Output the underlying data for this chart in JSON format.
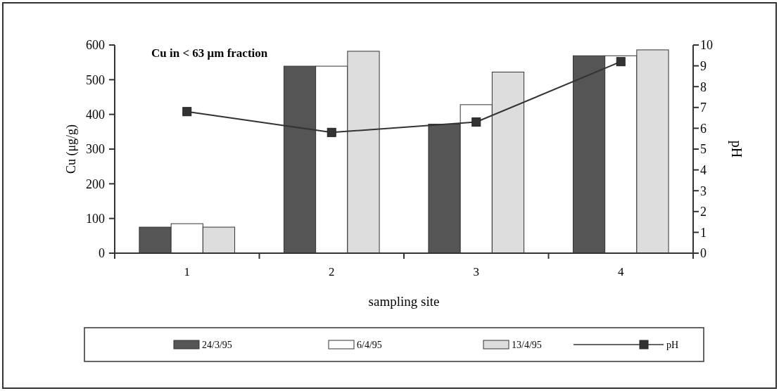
{
  "chart_data": {
    "type": "bar",
    "title": "Cu in < 63 μm fraction",
    "xlabel": "sampling site",
    "ylabel": "Cu (μg/g)",
    "y2label": "pH",
    "categories": [
      "1",
      "2",
      "3",
      "4"
    ],
    "series": [
      {
        "name": "24/3/95",
        "color": "#555555",
        "values": [
          75,
          539,
          372,
          569
        ]
      },
      {
        "name": "6/4/95",
        "color": "#ffffff",
        "values": [
          85,
          539,
          428,
          569
        ]
      },
      {
        "name": "13/4/95",
        "color": "#dddddd",
        "values": [
          75,
          582,
          522,
          586
        ]
      },
      {
        "name": "pH",
        "type": "line",
        "axis": "y2",
        "color": "#333333",
        "marker": "square",
        "values": [
          6.8,
          5.8,
          6.3,
          9.2
        ]
      }
    ],
    "ylim": [
      0,
      600
    ],
    "yticks": [
      0,
      100,
      200,
      300,
      400,
      500,
      600
    ],
    "y2lim": [
      0,
      10
    ],
    "y2ticks": [
      0,
      1,
      2,
      3,
      4,
      5,
      6,
      7,
      8,
      9,
      10
    ],
    "legend": "bottom"
  }
}
